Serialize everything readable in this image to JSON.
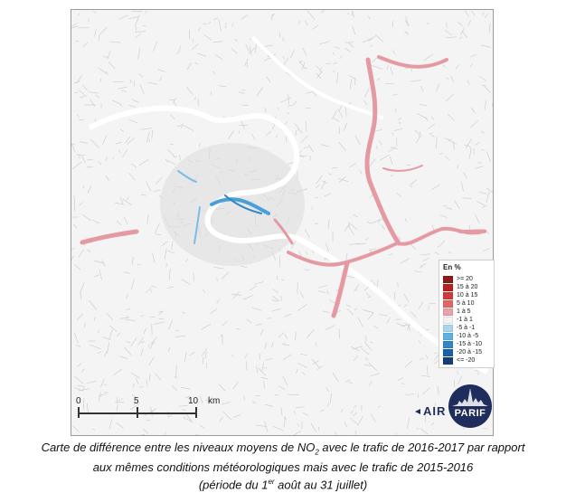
{
  "legend": {
    "title": "En %",
    "items": [
      {
        "label": ">= 20",
        "color": "#8b1a1a"
      },
      {
        "label": "15 à 20",
        "color": "#b52020"
      },
      {
        "label": "10 à 15",
        "color": "#d23a3a"
      },
      {
        "label": "5 à 10",
        "color": "#e06666"
      },
      {
        "label": "1 à 5",
        "color": "#eba1a8"
      },
      {
        "label": "-1 à 1",
        "color": "#f2f2f2"
      },
      {
        "label": "-5 à -1",
        "color": "#a9d6ee"
      },
      {
        "label": "-10 à -5",
        "color": "#5fb1e0"
      },
      {
        "label": "-15 à -10",
        "color": "#2f86c9"
      },
      {
        "label": "-20 à -15",
        "color": "#1d5fa8"
      },
      {
        "label": "<= -20",
        "color": "#173d7a"
      }
    ]
  },
  "scale_bar": {
    "label_0": "0",
    "label_5": "5",
    "label_10": "10",
    "unit": "km"
  },
  "logo": {
    "word1": "AIR",
    "word2": "PARIF"
  },
  "caption": {
    "line1_a": "Carte de différence entre les niveaux moyens de NO",
    "line1_sub": "2",
    "line1_b": " avec le trafic de 2016-2017 par rapport",
    "line2": "aux mêmes conditions météorologiques mais avec le trafic de 2015-2016",
    "line3_a": "(période du 1",
    "line3_sup": "er",
    "line3_b": " août au 31 juillet)"
  },
  "colors": {
    "increase": "#e59aa3",
    "decrease": "#4a9fd9",
    "background": "#f4f4f4",
    "roads": "#c9c9c9",
    "logo": "#1f2d5c"
  }
}
